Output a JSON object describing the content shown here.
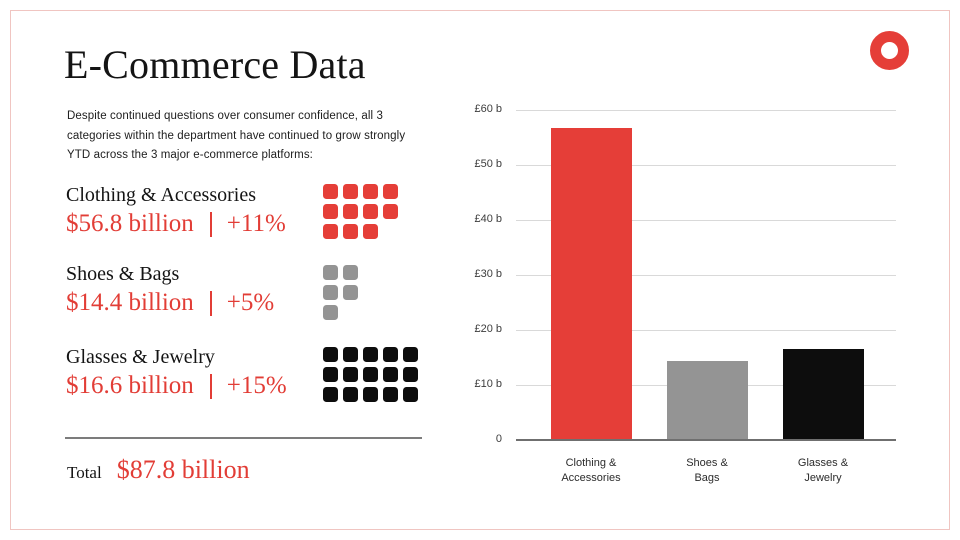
{
  "slide": {
    "title": "E-Commerce Data",
    "description": "Despite continued questions over consumer confidence, all 3 categories within the department have continued to grow strongly YTD across the 3 major e-commerce platforms:",
    "logo": "red-ring",
    "colors": {
      "red": "#e53e38",
      "gray": "#949494",
      "black": "#0d0d0d",
      "frame_border": "#f0c5c1"
    }
  },
  "categories": [
    {
      "name": "Clothing & Accessories",
      "value": "$56.8 billion",
      "growth": "+11%",
      "squares": {
        "count": 11,
        "columns": 4,
        "color": "#e53e38"
      }
    },
    {
      "name": "Shoes & Bags",
      "value": "$14.4 billion",
      "growth": "+5%",
      "squares": {
        "count": 5,
        "columns": 2,
        "color": "#949494"
      }
    },
    {
      "name": "Glasses & Jewelry",
      "value": "$16.6 billion",
      "growth": "+15%",
      "squares": {
        "count": 15,
        "columns": 5,
        "color": "#0d0d0d"
      }
    }
  ],
  "total": {
    "label": "Total",
    "value": "$87.8 billion"
  },
  "chart_data": {
    "type": "bar",
    "title": "",
    "categories": [
      "Clothing & Accessories",
      "Shoes & Bags",
      "Glasses & Jewelry"
    ],
    "x_labels": [
      [
        "Clothing &",
        "Accessories"
      ],
      [
        "Shoes &",
        "Bags"
      ],
      [
        "Glasses &",
        "Jewelry"
      ]
    ],
    "values": [
      56.8,
      14.4,
      16.6
    ],
    "bar_colors": [
      "#e53e38",
      "#949494",
      "#0d0d0d"
    ],
    "y_ticks": [
      {
        "label": "£60 b",
        "value": 60
      },
      {
        "label": "£50 b",
        "value": 50
      },
      {
        "label": "£40 b",
        "value": 40
      },
      {
        "label": "£30 b",
        "value": 30
      },
      {
        "label": "£20 b",
        "value": 20
      },
      {
        "label": "£10 b",
        "value": 10
      },
      {
        "label": "0",
        "value": 0
      }
    ],
    "ylim": [
      0,
      60
    ],
    "xlabel": "",
    "ylabel": "",
    "grid": true,
    "legend": false
  }
}
